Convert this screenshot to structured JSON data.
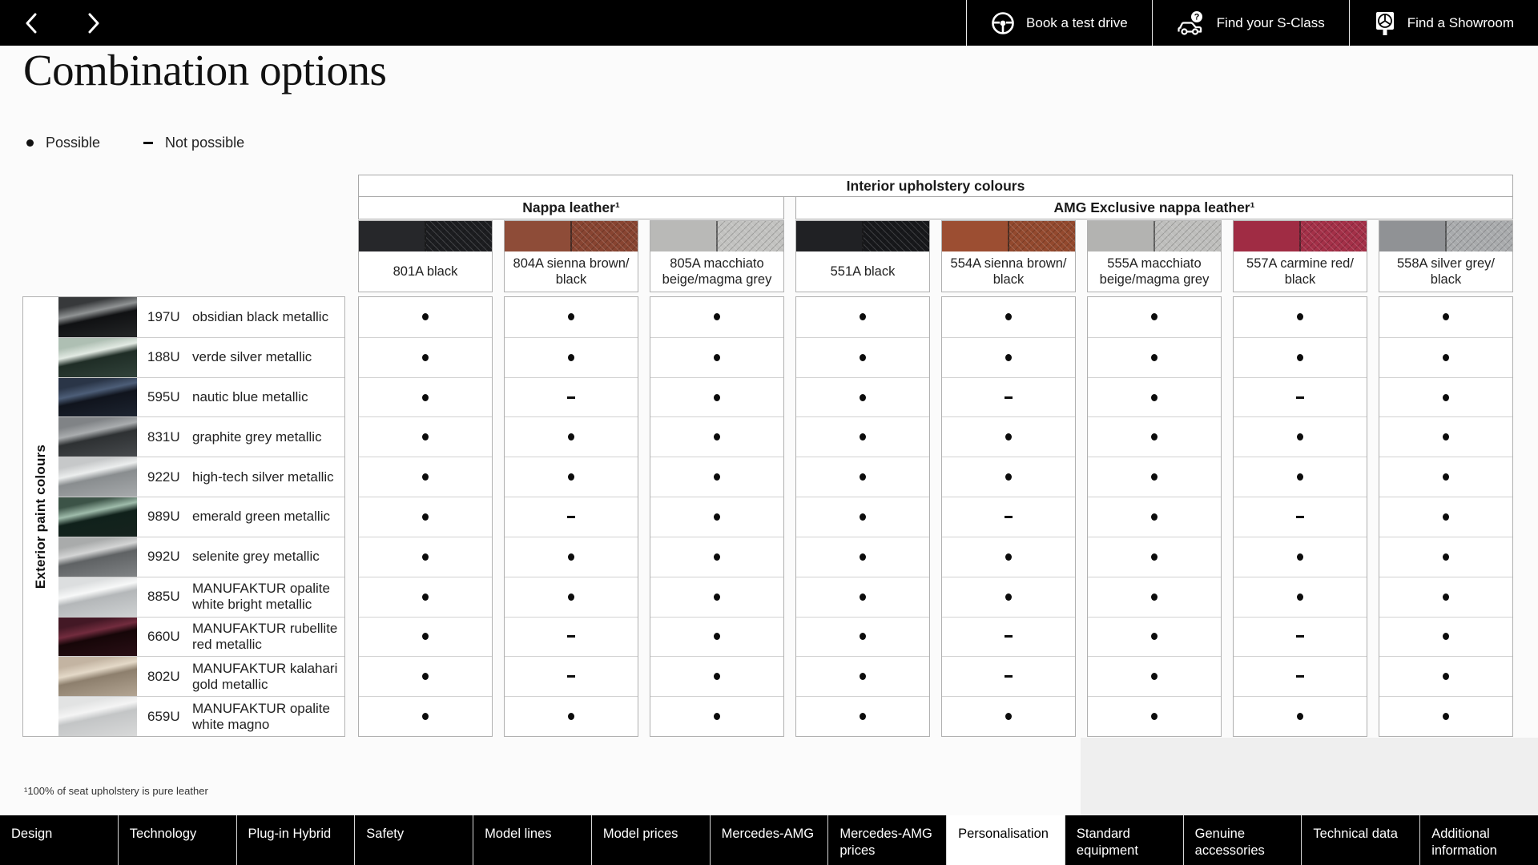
{
  "top_bar": {
    "actions": [
      {
        "icon": "steering-wheel-icon",
        "label": "Book a test drive"
      },
      {
        "icon": "car-question-icon",
        "label": "Find your S-Class"
      },
      {
        "icon": "showroom-sign-icon",
        "label": "Find a Showroom"
      }
    ]
  },
  "page": {
    "title": "Combination options",
    "legend": {
      "possible": {
        "symbol": "●",
        "label": "Possible"
      },
      "not_possible": {
        "symbol": "–",
        "label": "Not possible"
      }
    },
    "footnote": "¹100% of seat upholstery is pure leather"
  },
  "table": {
    "interior_header": "Interior upholstery colours",
    "exterior_header": "Exterior paint colours",
    "groups": [
      {
        "label": "Nappa leather¹",
        "span": 3
      },
      {
        "label": "AMG Exclusive nappa leather¹",
        "span": 5
      }
    ],
    "columns": [
      {
        "code": "801A",
        "label": "801A  black",
        "swatch": {
          "left": "#26272a",
          "right": "#1c1d20"
        }
      },
      {
        "code": "804A",
        "label": "804A  sienna brown/\nblack",
        "swatch": {
          "left": "#8e4c38",
          "right": "#884431"
        }
      },
      {
        "code": "805A",
        "label": "805A  macchiato\nbeige/magma grey",
        "swatch": {
          "left": "#b9b9b7",
          "right": "#c2c2c0"
        }
      },
      {
        "code": "551A",
        "label": "551A  black",
        "swatch": {
          "left": "#202124",
          "right": "#17181b"
        }
      },
      {
        "code": "554A",
        "label": "554A  sienna brown/\nblack",
        "swatch": {
          "left": "#9c4e32",
          "right": "#93492e"
        }
      },
      {
        "code": "555A",
        "label": "555A  macchiato\nbeige/magma grey",
        "swatch": {
          "left": "#b3b3b1",
          "right": "#bebebc"
        }
      },
      {
        "code": "557A",
        "label": "557A  carmine red/\nblack",
        "swatch": {
          "left": "#a02c44",
          "right": "#a43048"
        }
      },
      {
        "code": "558A",
        "label": "558A  silver grey/\nblack",
        "swatch": {
          "left": "#909295",
          "right": "#a9abad"
        }
      }
    ],
    "rows": [
      {
        "code": "197U",
        "name": "obsidian black metallic",
        "paint": [
          "#37393b",
          "#909394",
          "#101113",
          "#242627"
        ],
        "values": [
          1,
          1,
          1,
          1,
          1,
          1,
          1,
          1
        ]
      },
      {
        "code": "188U",
        "name": "verde silver metallic",
        "paint": [
          "#aebfb3",
          "#e2eae3",
          "#1f2d26",
          "#31423a"
        ],
        "values": [
          1,
          1,
          1,
          1,
          1,
          1,
          1,
          1
        ]
      },
      {
        "code": "595U",
        "name": "nautic blue metallic",
        "paint": [
          "#2a3547",
          "#4d5e78",
          "#10141d",
          "#1d2430"
        ],
        "values": [
          1,
          0,
          1,
          1,
          0,
          1,
          0,
          1
        ]
      },
      {
        "code": "831U",
        "name": "graphite grey metallic",
        "paint": [
          "#808386",
          "#aaadaf",
          "#2e3133",
          "#474a4d"
        ],
        "values": [
          1,
          1,
          1,
          1,
          1,
          1,
          1,
          1
        ]
      },
      {
        "code": "922U",
        "name": "high-tech silver metallic",
        "paint": [
          "#c6c8c9",
          "#eceeee",
          "#898d8f",
          "#a7aaac"
        ],
        "values": [
          1,
          1,
          1,
          1,
          1,
          1,
          1,
          1
        ]
      },
      {
        "code": "989U",
        "name": "emerald green metallic",
        "paint": [
          "#3c5347",
          "#9fbcab",
          "#10211b",
          "#16231e"
        ],
        "values": [
          1,
          0,
          1,
          1,
          0,
          1,
          0,
          1
        ]
      },
      {
        "code": "992U",
        "name": "selenite grey metallic",
        "paint": [
          "#a9abab",
          "#d4d5d5",
          "#5f6264",
          "#808385"
        ],
        "values": [
          1,
          1,
          1,
          1,
          1,
          1,
          1,
          1
        ]
      },
      {
        "code": "885U",
        "name": "MANUFAKTUR opalite white bright metallic",
        "paint": [
          "#dcdedf",
          "#f7f8f8",
          "#b4b7b9",
          "#cfd2d3"
        ],
        "values": [
          1,
          1,
          1,
          1,
          1,
          1,
          1,
          1
        ]
      },
      {
        "code": "660U",
        "name": "MANUFAKTUR rubellite red metallic",
        "paint": [
          "#431825",
          "#722c3e",
          "#160608",
          "#2a0f16"
        ],
        "values": [
          1,
          0,
          1,
          1,
          0,
          1,
          0,
          1
        ]
      },
      {
        "code": "802U",
        "name": "MANUFAKTUR kalahari gold metallic",
        "paint": [
          "#c3b4a2",
          "#e4d9c8",
          "#8d7f6d",
          "#b3a593"
        ],
        "values": [
          1,
          0,
          1,
          1,
          0,
          1,
          0,
          1
        ]
      },
      {
        "code": "659U",
        "name": "MANUFAKTUR opalite white magno",
        "paint": [
          "#e2e3e3",
          "#f4f4f4",
          "#c3c5c6",
          "#d8d9d9"
        ],
        "values": [
          1,
          1,
          1,
          1,
          1,
          1,
          1,
          1
        ]
      }
    ]
  },
  "bottom_nav": {
    "tabs": [
      {
        "label": "Design"
      },
      {
        "label": "Technology"
      },
      {
        "label": "Plug-in Hybrid"
      },
      {
        "label": "Safety"
      },
      {
        "label": "Model lines"
      },
      {
        "label": "Model prices"
      },
      {
        "label": "Mercedes-AMG"
      },
      {
        "label": "Mercedes-AMG prices"
      },
      {
        "label": "Personalisation",
        "active": true
      },
      {
        "label": "Standard equipment"
      },
      {
        "label": "Genuine accessories"
      },
      {
        "label": "Technical data"
      },
      {
        "label": "Additional information"
      }
    ]
  }
}
